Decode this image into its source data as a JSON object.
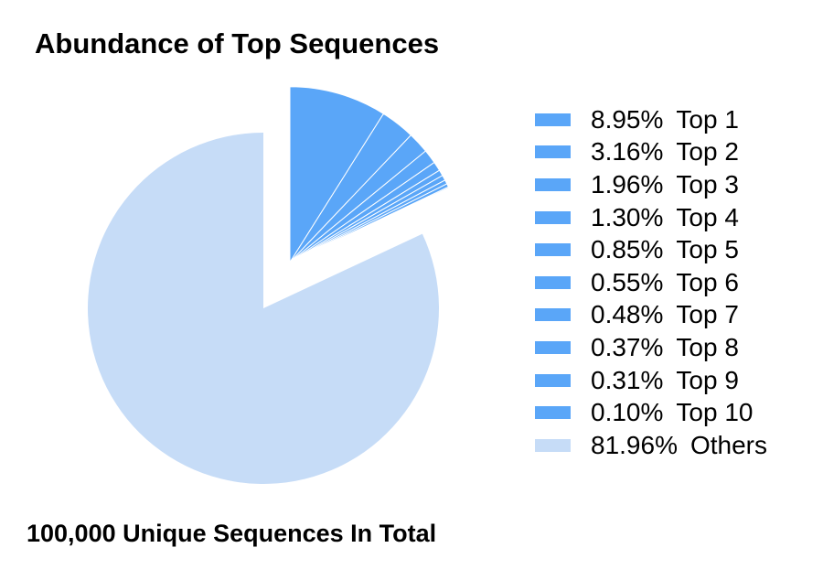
{
  "chart_data": {
    "type": "pie",
    "title": "Abundance of Top Sequences",
    "note": "100,000 Unique Sequences In Total",
    "slices": [
      {
        "label": "Top 1",
        "value_text": "8.95%",
        "value": 8.95,
        "color": "#5aa6f8",
        "exploded": true
      },
      {
        "label": "Top 2",
        "value_text": "3.16%",
        "value": 3.16,
        "color": "#5aa6f8",
        "exploded": true
      },
      {
        "label": "Top 3",
        "value_text": "1.96%",
        "value": 1.96,
        "color": "#5aa6f8",
        "exploded": true
      },
      {
        "label": "Top 4",
        "value_text": "1.30%",
        "value": 1.3,
        "color": "#5aa6f8",
        "exploded": true
      },
      {
        "label": "Top 5",
        "value_text": "0.85%",
        "value": 0.85,
        "color": "#5aa6f8",
        "exploded": true
      },
      {
        "label": "Top 6",
        "value_text": "0.55%",
        "value": 0.55,
        "color": "#5aa6f8",
        "exploded": true
      },
      {
        "label": "Top 7",
        "value_text": "0.48%",
        "value": 0.48,
        "color": "#5aa6f8",
        "exploded": true
      },
      {
        "label": "Top 8",
        "value_text": "0.37%",
        "value": 0.37,
        "color": "#5aa6f8",
        "exploded": true
      },
      {
        "label": "Top 9",
        "value_text": "0.31%",
        "value": 0.31,
        "color": "#5aa6f8",
        "exploded": true
      },
      {
        "label": "Top 10",
        "value_text": "0.10%",
        "value": 0.1,
        "color": "#5aa6f8",
        "exploded": true
      },
      {
        "label": "Others",
        "value_text": "81.96%",
        "value": 81.96,
        "color": "#c6dcf7",
        "exploded": false
      }
    ],
    "legend_position": "right"
  }
}
